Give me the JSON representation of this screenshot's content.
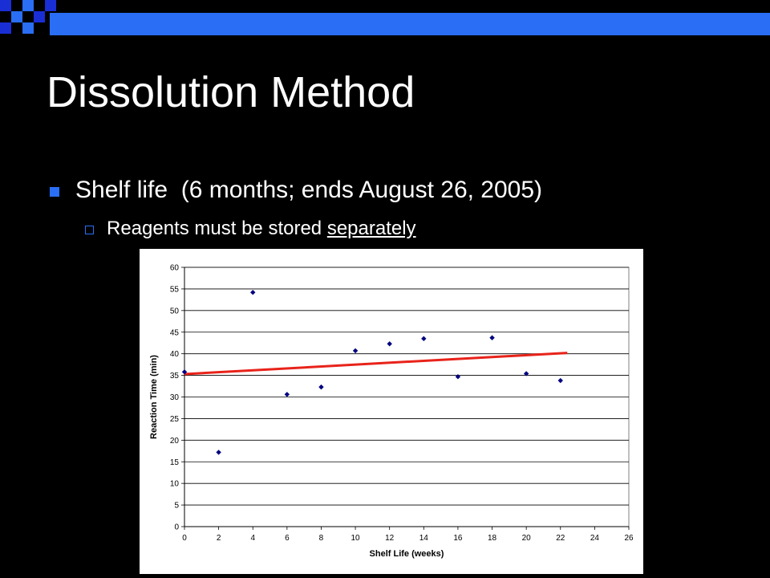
{
  "slide": {
    "title": "Dissolution Method",
    "bullet": "Shelf life  (6 months; ends August 26, 2005)",
    "sub_bullet_prefix": "Reagents must be stored ",
    "sub_bullet_emphasis": "separately"
  },
  "colors": {
    "background": "#000000",
    "accent": "#2a6ef5",
    "trendline": "#e8231a",
    "marker": "#000080"
  },
  "chart_data": {
    "type": "scatter",
    "title": "",
    "xlabel": "Shelf Life (weeks)",
    "ylabel": "Reaction Time (min)",
    "xlim": [
      0,
      26
    ],
    "ylim": [
      0,
      60
    ],
    "x_ticks": [
      0,
      2,
      4,
      6,
      8,
      10,
      12,
      14,
      16,
      18,
      20,
      22,
      24,
      26
    ],
    "y_ticks": [
      0,
      5,
      10,
      15,
      20,
      25,
      30,
      35,
      40,
      45,
      50,
      55,
      60
    ],
    "grid": "horizontal",
    "legend": "none",
    "points": [
      {
        "x": 0,
        "y": 35.8
      },
      {
        "x": 2,
        "y": 17.2
      },
      {
        "x": 4,
        "y": 54.2
      },
      {
        "x": 6,
        "y": 30.6
      },
      {
        "x": 8,
        "y": 32.3
      },
      {
        "x": 10,
        "y": 40.7
      },
      {
        "x": 12,
        "y": 42.3
      },
      {
        "x": 14,
        "y": 43.5
      },
      {
        "x": 16,
        "y": 34.7
      },
      {
        "x": 18,
        "y": 43.7
      },
      {
        "x": 20,
        "y": 35.4
      },
      {
        "x": 22,
        "y": 33.8
      }
    ],
    "trendline": {
      "x": [
        0,
        22.4
      ],
      "y": [
        35.3,
        40.2
      ]
    }
  }
}
